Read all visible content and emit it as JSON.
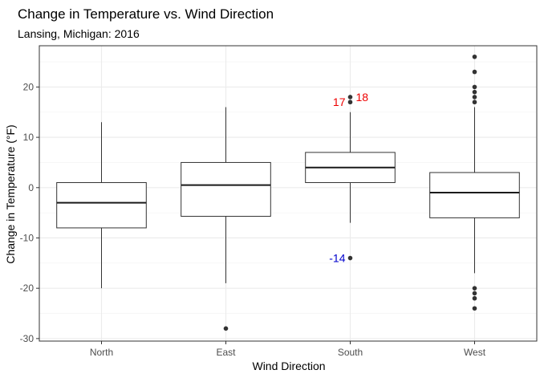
{
  "chart_data": {
    "type": "boxplot",
    "title": "Change in Temperature vs. Wind Direction",
    "subtitle": "Lansing, Michigan: 2016",
    "xlabel": "Wind Direction",
    "ylabel": "Change in Temperature (°F)",
    "categories": [
      "North",
      "East",
      "South",
      "West"
    ],
    "ylim": [
      -30.5,
      28.2
    ],
    "yticks": [
      -30,
      -20,
      -10,
      0,
      10,
      20
    ],
    "grid": true,
    "boxes": [
      {
        "category": "North",
        "whisker_low": -20,
        "q1": -8,
        "median": -3,
        "q3": 1,
        "whisker_high": 13,
        "outliers": []
      },
      {
        "category": "East",
        "whisker_low": -19,
        "q1": -5.7,
        "median": 0.5,
        "q3": 5,
        "whisker_high": 16,
        "outliers": [
          -28
        ]
      },
      {
        "category": "South",
        "whisker_low": -7,
        "q1": 1,
        "median": 4,
        "q3": 7,
        "whisker_high": 15,
        "outliers": [
          17,
          18,
          -14
        ]
      },
      {
        "category": "West",
        "whisker_low": -17,
        "q1": -6,
        "median": -1,
        "q3": 3,
        "whisker_high": 16,
        "outliers": [
          17,
          18,
          19,
          20,
          23,
          26,
          -20,
          -21,
          -22,
          -24
        ]
      }
    ],
    "annotations": [
      {
        "text": "17",
        "x": "South",
        "y": 17,
        "side": "left",
        "color": "#ee0000"
      },
      {
        "text": "18",
        "x": "South",
        "y": 18,
        "side": "right",
        "color": "#ee0000"
      },
      {
        "text": "-14",
        "x": "South",
        "y": -14,
        "side": "left",
        "color": "#0000cc"
      }
    ]
  }
}
